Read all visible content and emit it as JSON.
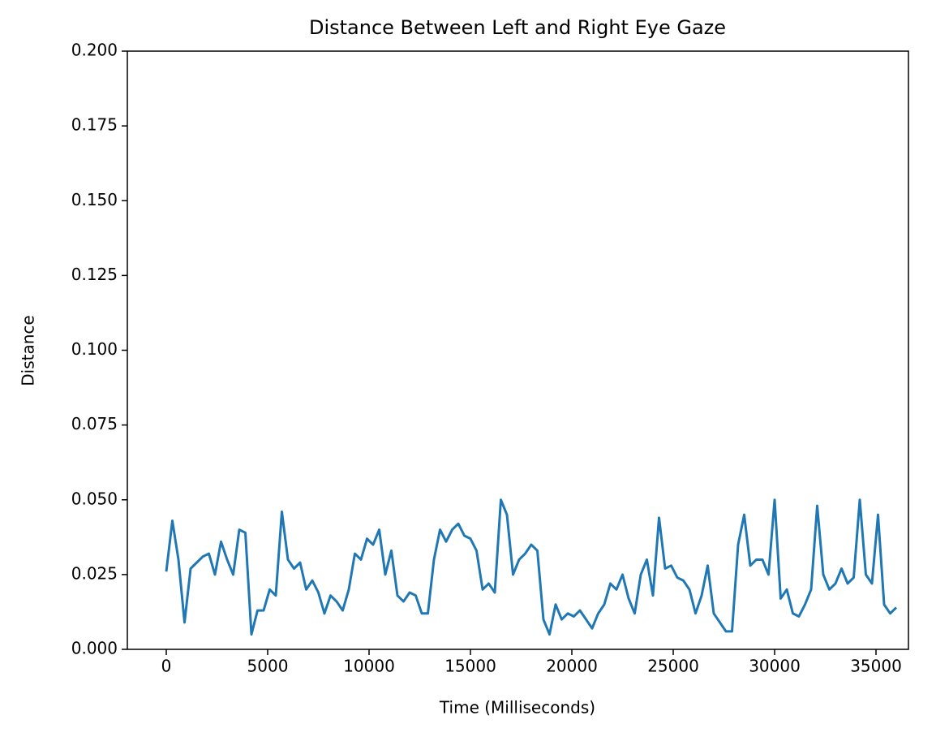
{
  "chart_data": {
    "type": "line",
    "title": "Distance Between Left and Right Eye Gaze",
    "x_label": "Time (Milliseconds)",
    "y_label": "Distance",
    "color": "#1f77b4",
    "x": [
      0,
      300,
      600,
      900,
      1200,
      1500,
      1800,
      2100,
      2400,
      2700,
      3000,
      3300,
      3600,
      3900,
      4200,
      4500,
      4800,
      5100,
      5400,
      5700,
      6000,
      6300,
      6600,
      6900,
      7200,
      7500,
      7800,
      8100,
      8400,
      8700,
      9000,
      9300,
      9600,
      9900,
      10200,
      10500,
      10800,
      11100,
      11400,
      11700,
      12000,
      12300,
      12600,
      12900,
      13200,
      13500,
      13800,
      14100,
      14400,
      14700,
      15000,
      15300,
      15600,
      15900,
      16200,
      16500,
      16800,
      17100,
      17400,
      17700,
      18000,
      18300,
      18600,
      18900,
      19200,
      19500,
      19800,
      20100,
      20400,
      20700,
      21000,
      21300,
      21600,
      21900,
      22200,
      22500,
      22800,
      23100,
      23400,
      23700,
      24000,
      24300,
      24600,
      24900,
      25200,
      25500,
      25800,
      26100,
      26400,
      26700,
      27000,
      27300,
      27600,
      27900,
      28200,
      28500,
      28800,
      29100,
      29400,
      29700,
      30000,
      30300,
      30600,
      30900,
      31200,
      31500,
      31800,
      32100,
      32400,
      32700,
      33000,
      33300,
      33600,
      33900,
      34200,
      34500,
      34800,
      35100,
      35400,
      35700,
      36000
    ],
    "values": [
      0.026,
      0.043,
      0.03,
      0.009,
      0.027,
      0.029,
      0.031,
      0.032,
      0.025,
      0.036,
      0.03,
      0.025,
      0.04,
      0.039,
      0.005,
      0.013,
      0.013,
      0.02,
      0.018,
      0.046,
      0.03,
      0.027,
      0.029,
      0.02,
      0.023,
      0.019,
      0.012,
      0.018,
      0.016,
      0.013,
      0.02,
      0.032,
      0.03,
      0.037,
      0.035,
      0.04,
      0.025,
      0.033,
      0.018,
      0.016,
      0.019,
      0.018,
      0.012,
      0.012,
      0.03,
      0.04,
      0.036,
      0.04,
      0.042,
      0.038,
      0.037,
      0.033,
      0.02,
      0.022,
      0.019,
      0.05,
      0.045,
      0.025,
      0.03,
      0.032,
      0.035,
      0.033,
      0.01,
      0.005,
      0.015,
      0.01,
      0.012,
      0.011,
      0.013,
      0.01,
      0.007,
      0.012,
      0.015,
      0.022,
      0.02,
      0.025,
      0.017,
      0.012,
      0.025,
      0.03,
      0.018,
      0.044,
      0.027,
      0.028,
      0.024,
      0.023,
      0.02,
      0.012,
      0.018,
      0.028,
      0.012,
      0.009,
      0.006,
      0.006,
      0.035,
      0.045,
      0.028,
      0.03,
      0.03,
      0.025,
      0.05,
      0.017,
      0.02,
      0.012,
      0.011,
      0.015,
      0.02,
      0.048,
      0.025,
      0.02,
      0.022,
      0.027,
      0.022,
      0.024,
      0.05,
      0.025,
      0.022,
      0.045,
      0.015,
      0.012,
      0.014
    ],
    "xlim": [
      -1920,
      36600
    ],
    "xticks": [
      0,
      5000,
      10000,
      15000,
      20000,
      25000,
      30000,
      35000
    ],
    "ylim": [
      0,
      0.2
    ],
    "yticks": [
      {
        "value": 0,
        "label": "0.000"
      },
      {
        "value": 0.025,
        "label": "0.025"
      },
      {
        "value": 0.05,
        "label": "0.050"
      },
      {
        "value": 0.075,
        "label": "0.075"
      },
      {
        "value": 0.1,
        "label": "0.100"
      },
      {
        "value": 0.125,
        "label": "0.125"
      },
      {
        "value": 0.15,
        "label": "0.150"
      },
      {
        "value": 0.175,
        "label": "0.175"
      },
      {
        "value": 0.2,
        "label": "0.200"
      }
    ]
  }
}
